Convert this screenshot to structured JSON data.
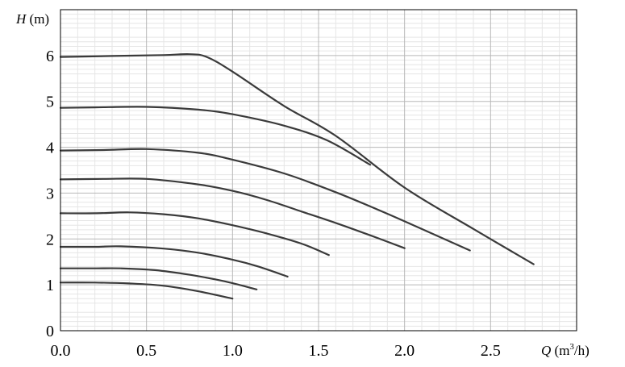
{
  "chart_data": {
    "type": "line",
    "title": "",
    "xlabel": {
      "var": "Q",
      "unit_open": " (m",
      "unit_sup": "3",
      "unit_close": "/h)"
    },
    "ylabel": {
      "var": "H",
      "unit": " (m)"
    },
    "xlim": [
      0,
      3.0
    ],
    "ylim": [
      0,
      7.0
    ],
    "xticks": [
      "0.0",
      "0.5",
      "1.0",
      "1.5",
      "2.0",
      "2.5"
    ],
    "xtick_values": [
      0,
      0.5,
      1.0,
      1.5,
      2.0,
      2.5
    ],
    "yticks": [
      "0",
      "1",
      "2",
      "3",
      "4",
      "5",
      "6"
    ],
    "ytick_values": [
      0,
      1,
      2,
      3,
      4,
      5,
      6
    ],
    "grid": true,
    "line_color": "#3a3a3a",
    "series": [
      {
        "x": [
          0,
          0.3,
          0.6,
          0.75,
          0.85,
          1.0,
          1.3,
          1.6,
          2.0,
          2.4,
          2.75
        ],
        "y": [
          5.97,
          5.99,
          6.01,
          6.03,
          5.97,
          5.65,
          4.9,
          4.25,
          3.12,
          2.22,
          1.45
        ]
      },
      {
        "x": [
          0,
          0.2,
          0.5,
          0.8,
          1.0,
          1.3,
          1.55,
          1.8
        ],
        "y": [
          4.86,
          4.87,
          4.88,
          4.82,
          4.72,
          4.47,
          4.15,
          3.62
        ]
      },
      {
        "x": [
          0,
          0.25,
          0.5,
          0.8,
          1.0,
          1.3,
          1.6,
          1.9,
          2.2,
          2.38
        ],
        "y": [
          3.93,
          3.94,
          3.96,
          3.88,
          3.73,
          3.43,
          3.02,
          2.55,
          2.05,
          1.75
        ]
      },
      {
        "x": [
          0,
          0.25,
          0.5,
          0.8,
          1.0,
          1.2,
          1.4,
          1.6,
          1.8,
          2.0
        ],
        "y": [
          3.3,
          3.31,
          3.31,
          3.19,
          3.05,
          2.85,
          2.6,
          2.35,
          2.08,
          1.8
        ]
      },
      {
        "x": [
          0,
          0.2,
          0.4,
          0.6,
          0.8,
          1.0,
          1.2,
          1.4,
          1.56
        ],
        "y": [
          2.56,
          2.56,
          2.58,
          2.54,
          2.45,
          2.3,
          2.12,
          1.9,
          1.65
        ]
      },
      {
        "x": [
          0,
          0.2,
          0.35,
          0.6,
          0.8,
          1.0,
          1.15,
          1.32
        ],
        "y": [
          1.83,
          1.83,
          1.84,
          1.79,
          1.7,
          1.55,
          1.4,
          1.18
        ]
      },
      {
        "x": [
          0,
          0.2,
          0.35,
          0.55,
          0.75,
          0.95,
          1.14
        ],
        "y": [
          1.36,
          1.36,
          1.36,
          1.32,
          1.22,
          1.08,
          0.9
        ]
      },
      {
        "x": [
          0,
          0.2,
          0.4,
          0.6,
          0.8,
          1.0
        ],
        "y": [
          1.05,
          1.05,
          1.03,
          0.98,
          0.86,
          0.7
        ]
      }
    ]
  }
}
